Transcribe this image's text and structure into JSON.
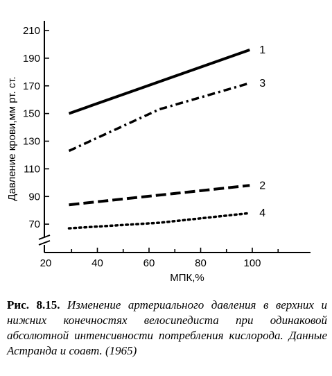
{
  "caption": {
    "label": "Рис. 8.15.",
    "text": "Изменение артериального давления в верхних и нижних конечностях велосипедиста при одинаковой абсолютной интенсивности потребления кислорода. Данные Астранда и соавт. (1965)"
  },
  "chart_data": {
    "type": "line",
    "xlabel": "МПК,%",
    "ylabel": "Давление крови,мм рт. ст.",
    "xlim": [
      20,
      110
    ],
    "ylim": [
      50,
      220
    ],
    "y_axis_break": true,
    "grid": false,
    "x_ticks": [
      20,
      40,
      60,
      80,
      100
    ],
    "y_ticks": [
      70,
      90,
      110,
      130,
      150,
      170,
      190,
      210
    ],
    "series": [
      {
        "name": "1",
        "style": "solid",
        "x": [
          29,
          99
        ],
        "y": [
          150,
          196
        ]
      },
      {
        "name": "3",
        "style": "dash-dot",
        "x": [
          29,
          64,
          99
        ],
        "y": [
          123,
          153,
          172
        ]
      },
      {
        "name": "2",
        "style": "dashed",
        "x": [
          29,
          99
        ],
        "y": [
          84,
          98
        ]
      },
      {
        "name": "4",
        "style": "dotted",
        "x": [
          29,
          64,
          99
        ],
        "y": [
          67,
          71,
          78
        ]
      }
    ]
  }
}
